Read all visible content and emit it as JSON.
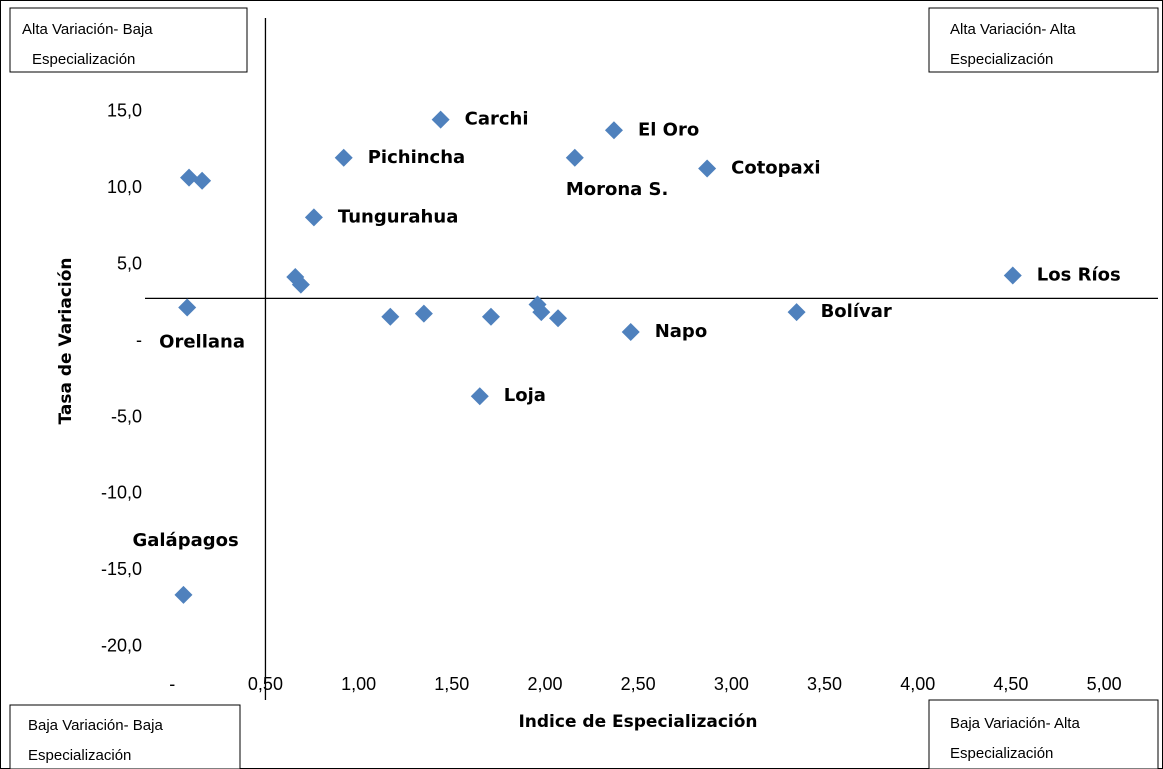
{
  "chart_data": {
    "type": "scatter",
    "x_label": "Indice de Especialización",
    "y_label": "Tasa de Variación",
    "xlim": [
      -0.86,
      5.3
    ],
    "ylim": [
      -22.5,
      22
    ],
    "xticks": [
      {
        "value": 0,
        "label": "-"
      },
      {
        "value": 0.5,
        "label": "0,50"
      },
      {
        "value": 1,
        "label": "1,00"
      },
      {
        "value": 1.5,
        "label": "1,50"
      },
      {
        "value": 2,
        "label": "2,00"
      },
      {
        "value": 2.5,
        "label": "2,50"
      },
      {
        "value": 3,
        "label": "3,00"
      },
      {
        "value": 3.5,
        "label": "3,50"
      },
      {
        "value": 4,
        "label": "4,00"
      },
      {
        "value": 4.5,
        "label": "4,50"
      },
      {
        "value": 5,
        "label": "5,00"
      }
    ],
    "yticks": [
      {
        "value": 15,
        "label": "15,0"
      },
      {
        "value": 10,
        "label": "10,0"
      },
      {
        "value": 5,
        "label": "5,0"
      },
      {
        "value": 0,
        "label": "-"
      },
      {
        "value": -5,
        "label": "-5,0"
      },
      {
        "value": -10,
        "label": "-10,0"
      },
      {
        "value": -15,
        "label": "-15,0"
      },
      {
        "value": -20,
        "label": "-20,0"
      }
    ],
    "reference_lines": {
      "x": 0.5,
      "y": 2.8
    },
    "color": "#4f81bd",
    "x": [
      1.44,
      2.37,
      2.16,
      0.92,
      2.87,
      0.76,
      0.09,
      0.16,
      0.66,
      0.69,
      4.51,
      0.08,
      1.17,
      1.35,
      1.71,
      1.96,
      1.98,
      2.07,
      2.46,
      3.35,
      1.65,
      0.06
    ],
    "values": [
      14.5,
      13.8,
      12.0,
      12.0,
      11.3,
      8.1,
      10.7,
      10.5,
      4.2,
      3.7,
      4.3,
      2.2,
      1.6,
      1.8,
      1.6,
      2.4,
      1.9,
      1.5,
      0.6,
      1.9,
      -3.6,
      -16.6
    ],
    "labels": [
      "Carchi",
      "El Oro",
      "Morona S.",
      "Pichincha",
      "Cotopaxi",
      "Tungurahua",
      null,
      null,
      null,
      null,
      "Los Ríos",
      "Orellana",
      null,
      null,
      null,
      null,
      null,
      null,
      "Napo",
      "Bolívar",
      "Loja",
      "Galápagos"
    ],
    "quadrant_labels": {
      "top_left": [
        "Alta Variación- Baja",
        "Especialización"
      ],
      "top_right": [
        "Alta Variación- Alta",
        "Especialización"
      ],
      "bottom_left": [
        "Baja Variación- Baja",
        "Especialización"
      ],
      "bottom_right": [
        "Baja Variación- Alta",
        "Especialización"
      ]
    }
  }
}
